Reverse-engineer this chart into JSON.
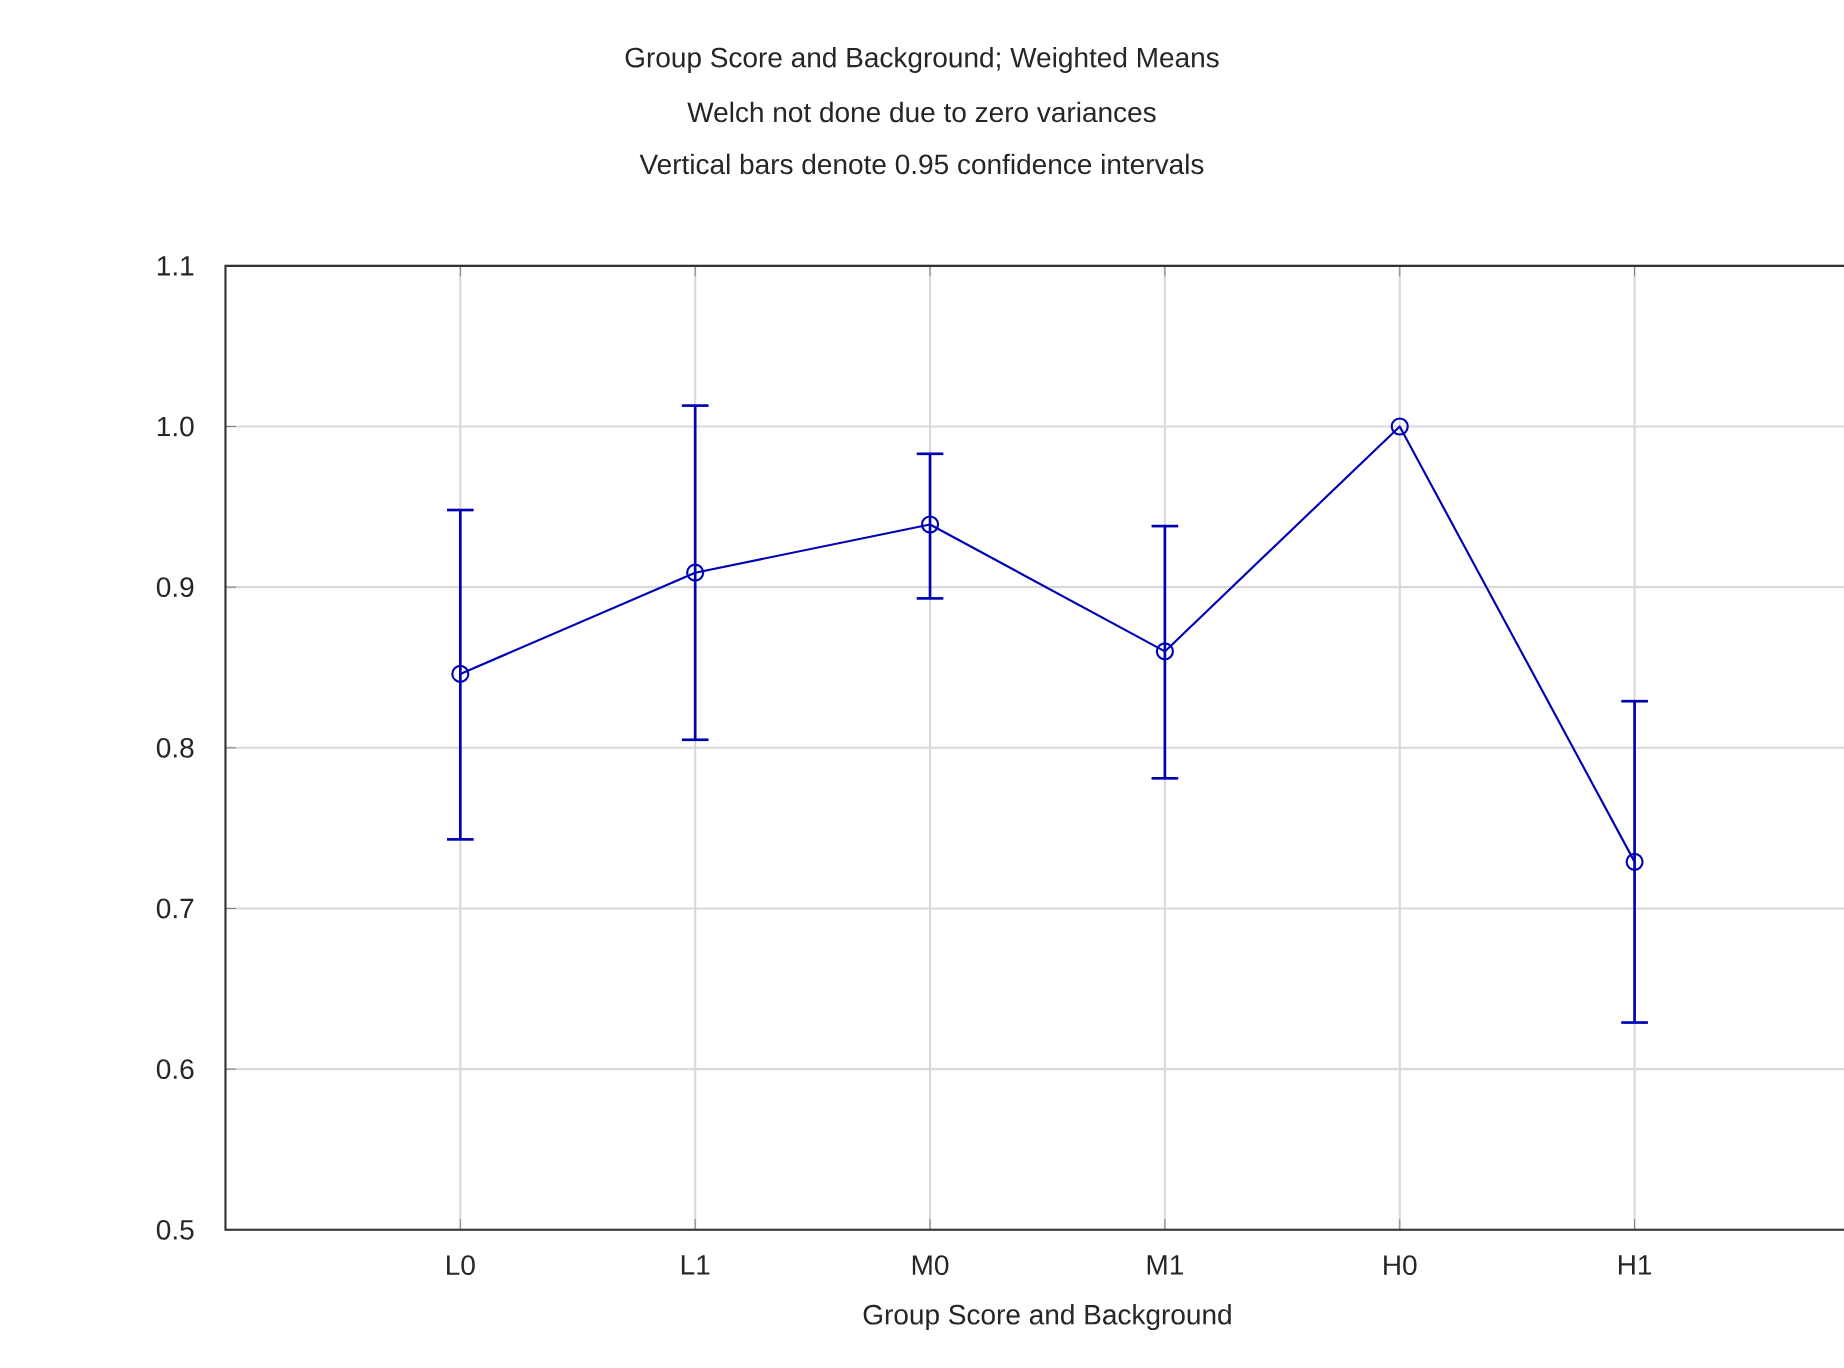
{
  "chart_data": {
    "type": "line",
    "title": "Group Score and Background; Weighted Means",
    "subtitle": "Welch not done due to zero variances",
    "annotations": [
      "Vertical bars denote 0.95 confidence intervals"
    ],
    "xlabel": "Group Score and Background",
    "categories": [
      "L0",
      "L1",
      "M0",
      "M1",
      "H0",
      "H1"
    ],
    "values": [
      0.846,
      0.909,
      0.939,
      0.86,
      1.0,
      0.729
    ],
    "errors": [
      [
        0.743,
        0.948
      ],
      [
        0.805,
        1.013
      ],
      [
        0.893,
        0.983
      ],
      [
        0.781,
        0.938
      ],
      null,
      [
        0.629,
        0.829
      ]
    ],
    "color": "#0000b4",
    "ylim": [
      0.5,
      1.1
    ],
    "yticks": [
      0.5,
      0.6,
      0.7,
      0.8,
      0.9,
      {
        "value": 1,
        "label": "1.0"
      },
      1.1
    ],
    "grid": true,
    "marker": "circle",
    "line_style": "solid"
  }
}
